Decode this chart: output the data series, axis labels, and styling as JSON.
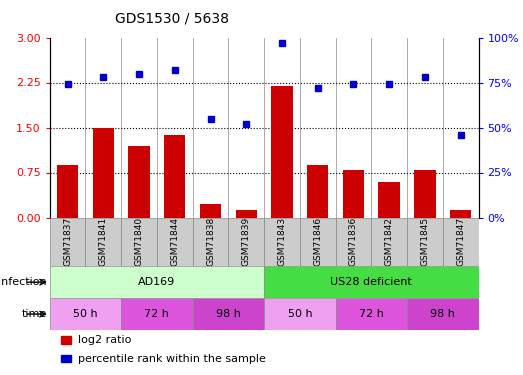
{
  "title": "GDS1530 / 5638",
  "samples": [
    "GSM71837",
    "GSM71841",
    "GSM71840",
    "GSM71844",
    "GSM71838",
    "GSM71839",
    "GSM71843",
    "GSM71846",
    "GSM71836",
    "GSM71842",
    "GSM71845",
    "GSM71847"
  ],
  "log2_ratio": [
    0.88,
    1.5,
    1.2,
    1.38,
    0.22,
    0.13,
    2.2,
    0.88,
    0.8,
    0.6,
    0.8,
    0.12
  ],
  "percentile_rank": [
    74,
    78,
    80,
    82,
    55,
    52,
    97,
    72,
    74,
    74,
    78,
    46
  ],
  "bar_color": "#cc0000",
  "dot_color": "#0000cc",
  "ylim_left": [
    0,
    3
  ],
  "ylim_right": [
    0,
    100
  ],
  "yticks_left": [
    0,
    0.75,
    1.5,
    2.25,
    3
  ],
  "yticks_right": [
    0,
    25,
    50,
    75,
    100
  ],
  "hlines": [
    0.75,
    1.5,
    2.25
  ],
  "infection_groups": [
    {
      "label": "AD169",
      "start": 0,
      "end": 6,
      "color": "#ccffcc"
    },
    {
      "label": "US28 deficient",
      "start": 6,
      "end": 12,
      "color": "#44dd44"
    }
  ],
  "time_groups": [
    {
      "label": "50 h",
      "start": 0,
      "end": 2,
      "color": "#f0a0f0"
    },
    {
      "label": "72 h",
      "start": 2,
      "end": 4,
      "color": "#dd55dd"
    },
    {
      "label": "98 h",
      "start": 4,
      "end": 6,
      "color": "#dd55dd"
    },
    {
      "label": "50 h",
      "start": 6,
      "end": 8,
      "color": "#f0a0f0"
    },
    {
      "label": "72 h",
      "start": 8,
      "end": 10,
      "color": "#dd55dd"
    },
    {
      "label": "98 h",
      "start": 10,
      "end": 12,
      "color": "#dd55dd"
    }
  ],
  "infection_label": "infection",
  "time_label": "time",
  "legend_items": [
    {
      "label": "log2 ratio",
      "color": "#cc0000"
    },
    {
      "label": "percentile rank within the sample",
      "color": "#0000cc"
    }
  ],
  "bg_color": "#ffffff",
  "bar_width": 0.6,
  "sample_bg_color": "#cccccc",
  "border_color": "#888888"
}
